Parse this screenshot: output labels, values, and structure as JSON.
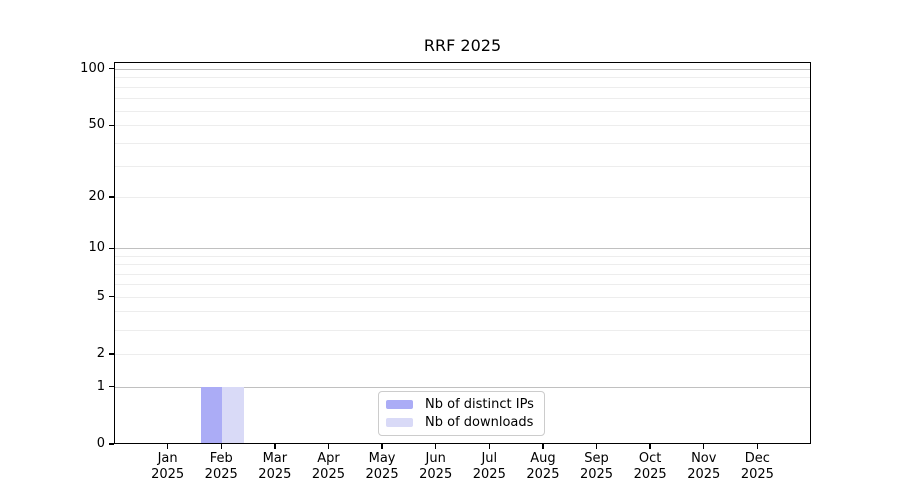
{
  "chart_data": {
    "type": "bar",
    "title": "RRF 2025",
    "categories": [
      "Jan 2025",
      "Feb 2025",
      "Mar 2025",
      "Apr 2025",
      "May 2025",
      "Jun 2025",
      "Jul 2025",
      "Aug 2025",
      "Sep 2025",
      "Oct 2025",
      "Nov 2025",
      "Dec 2025"
    ],
    "series": [
      {
        "name": "Nb of distinct IPs",
        "color": "#abacf6",
        "values": [
          0,
          1,
          0,
          0,
          0,
          0,
          0,
          0,
          0,
          0,
          0,
          0
        ]
      },
      {
        "name": "Nb of downloads",
        "color": "#d9daf7",
        "values": [
          0,
          1,
          0,
          0,
          0,
          0,
          0,
          0,
          0,
          0,
          0,
          0
        ]
      }
    ],
    "y_axis": {
      "scale": "log above 1, linear between 0 and 1",
      "tick_values": [
        100,
        50,
        20,
        10,
        5,
        2,
        1,
        0
      ],
      "gridline_values": [
        1,
        2,
        3,
        4,
        5,
        6,
        7,
        8,
        9,
        10,
        20,
        30,
        40,
        50,
        60,
        70,
        80,
        90,
        100
      ],
      "decade_values": [
        1,
        10,
        100
      ],
      "ylim": [
        0,
        110
      ]
    },
    "legend": {
      "position": "lower center",
      "labels": [
        "Nb of distinct IPs",
        "Nb of downloads"
      ]
    },
    "grid": "horizontal",
    "colors": {
      "bar_distinct_ips": "#abacf6",
      "bar_downloads": "#d9daf7",
      "grid_major": "#c0c0c0",
      "grid_minor": "#ededed",
      "axis": "#000000",
      "text": "#000000",
      "legend_border": "#cccccc",
      "background": "#ffffff"
    }
  }
}
